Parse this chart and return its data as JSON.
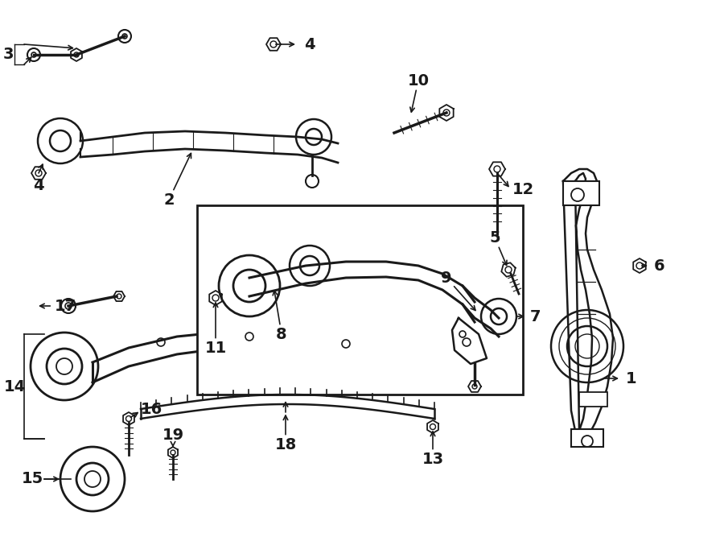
{
  "bg": "#ffffff",
  "lc": "#1a1a1a",
  "fig_w": 9.0,
  "fig_h": 6.62,
  "dpi": 100,
  "xlim": [
    0,
    900
  ],
  "ylim": [
    0,
    662
  ],
  "lw": 1.5,
  "fs": 14
}
